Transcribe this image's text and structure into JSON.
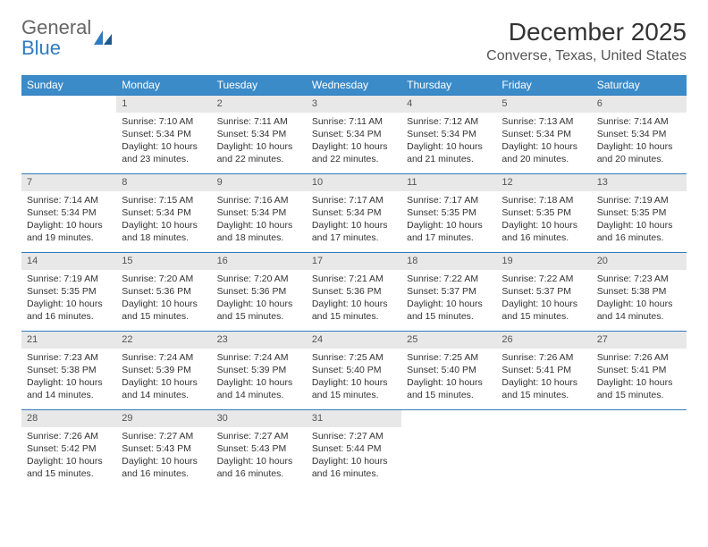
{
  "branding": {
    "logo_text_1": "General",
    "logo_text_2": "Blue",
    "logo_color_gray": "#666666",
    "logo_color_blue": "#2f7bbf"
  },
  "header": {
    "title": "December 2025",
    "location": "Converse, Texas, United States"
  },
  "colors": {
    "header_row_bg": "#3b8bc9",
    "header_row_fg": "#ffffff",
    "daynum_bg": "#e8e8e8",
    "row_border": "#2f7bbf",
    "page_bg": "#ffffff"
  },
  "weekdays": [
    "Sunday",
    "Monday",
    "Tuesday",
    "Wednesday",
    "Thursday",
    "Friday",
    "Saturday"
  ],
  "first_weekday_index": 1,
  "days": [
    {
      "n": 1,
      "sunrise": "7:10 AM",
      "sunset": "5:34 PM",
      "daylight": "10 hours and 23 minutes."
    },
    {
      "n": 2,
      "sunrise": "7:11 AM",
      "sunset": "5:34 PM",
      "daylight": "10 hours and 22 minutes."
    },
    {
      "n": 3,
      "sunrise": "7:11 AM",
      "sunset": "5:34 PM",
      "daylight": "10 hours and 22 minutes."
    },
    {
      "n": 4,
      "sunrise": "7:12 AM",
      "sunset": "5:34 PM",
      "daylight": "10 hours and 21 minutes."
    },
    {
      "n": 5,
      "sunrise": "7:13 AM",
      "sunset": "5:34 PM",
      "daylight": "10 hours and 20 minutes."
    },
    {
      "n": 6,
      "sunrise": "7:14 AM",
      "sunset": "5:34 PM",
      "daylight": "10 hours and 20 minutes."
    },
    {
      "n": 7,
      "sunrise": "7:14 AM",
      "sunset": "5:34 PM",
      "daylight": "10 hours and 19 minutes."
    },
    {
      "n": 8,
      "sunrise": "7:15 AM",
      "sunset": "5:34 PM",
      "daylight": "10 hours and 18 minutes."
    },
    {
      "n": 9,
      "sunrise": "7:16 AM",
      "sunset": "5:34 PM",
      "daylight": "10 hours and 18 minutes."
    },
    {
      "n": 10,
      "sunrise": "7:17 AM",
      "sunset": "5:34 PM",
      "daylight": "10 hours and 17 minutes."
    },
    {
      "n": 11,
      "sunrise": "7:17 AM",
      "sunset": "5:35 PM",
      "daylight": "10 hours and 17 minutes."
    },
    {
      "n": 12,
      "sunrise": "7:18 AM",
      "sunset": "5:35 PM",
      "daylight": "10 hours and 16 minutes."
    },
    {
      "n": 13,
      "sunrise": "7:19 AM",
      "sunset": "5:35 PM",
      "daylight": "10 hours and 16 minutes."
    },
    {
      "n": 14,
      "sunrise": "7:19 AM",
      "sunset": "5:35 PM",
      "daylight": "10 hours and 16 minutes."
    },
    {
      "n": 15,
      "sunrise": "7:20 AM",
      "sunset": "5:36 PM",
      "daylight": "10 hours and 15 minutes."
    },
    {
      "n": 16,
      "sunrise": "7:20 AM",
      "sunset": "5:36 PM",
      "daylight": "10 hours and 15 minutes."
    },
    {
      "n": 17,
      "sunrise": "7:21 AM",
      "sunset": "5:36 PM",
      "daylight": "10 hours and 15 minutes."
    },
    {
      "n": 18,
      "sunrise": "7:22 AM",
      "sunset": "5:37 PM",
      "daylight": "10 hours and 15 minutes."
    },
    {
      "n": 19,
      "sunrise": "7:22 AM",
      "sunset": "5:37 PM",
      "daylight": "10 hours and 15 minutes."
    },
    {
      "n": 20,
      "sunrise": "7:23 AM",
      "sunset": "5:38 PM",
      "daylight": "10 hours and 14 minutes."
    },
    {
      "n": 21,
      "sunrise": "7:23 AM",
      "sunset": "5:38 PM",
      "daylight": "10 hours and 14 minutes."
    },
    {
      "n": 22,
      "sunrise": "7:24 AM",
      "sunset": "5:39 PM",
      "daylight": "10 hours and 14 minutes."
    },
    {
      "n": 23,
      "sunrise": "7:24 AM",
      "sunset": "5:39 PM",
      "daylight": "10 hours and 14 minutes."
    },
    {
      "n": 24,
      "sunrise": "7:25 AM",
      "sunset": "5:40 PM",
      "daylight": "10 hours and 15 minutes."
    },
    {
      "n": 25,
      "sunrise": "7:25 AM",
      "sunset": "5:40 PM",
      "daylight": "10 hours and 15 minutes."
    },
    {
      "n": 26,
      "sunrise": "7:26 AM",
      "sunset": "5:41 PM",
      "daylight": "10 hours and 15 minutes."
    },
    {
      "n": 27,
      "sunrise": "7:26 AM",
      "sunset": "5:41 PM",
      "daylight": "10 hours and 15 minutes."
    },
    {
      "n": 28,
      "sunrise": "7:26 AM",
      "sunset": "5:42 PM",
      "daylight": "10 hours and 15 minutes."
    },
    {
      "n": 29,
      "sunrise": "7:27 AM",
      "sunset": "5:43 PM",
      "daylight": "10 hours and 16 minutes."
    },
    {
      "n": 30,
      "sunrise": "7:27 AM",
      "sunset": "5:43 PM",
      "daylight": "10 hours and 16 minutes."
    },
    {
      "n": 31,
      "sunrise": "7:27 AM",
      "sunset": "5:44 PM",
      "daylight": "10 hours and 16 minutes."
    }
  ],
  "labels": {
    "sunrise": "Sunrise:",
    "sunset": "Sunset:",
    "daylight": "Daylight:"
  }
}
